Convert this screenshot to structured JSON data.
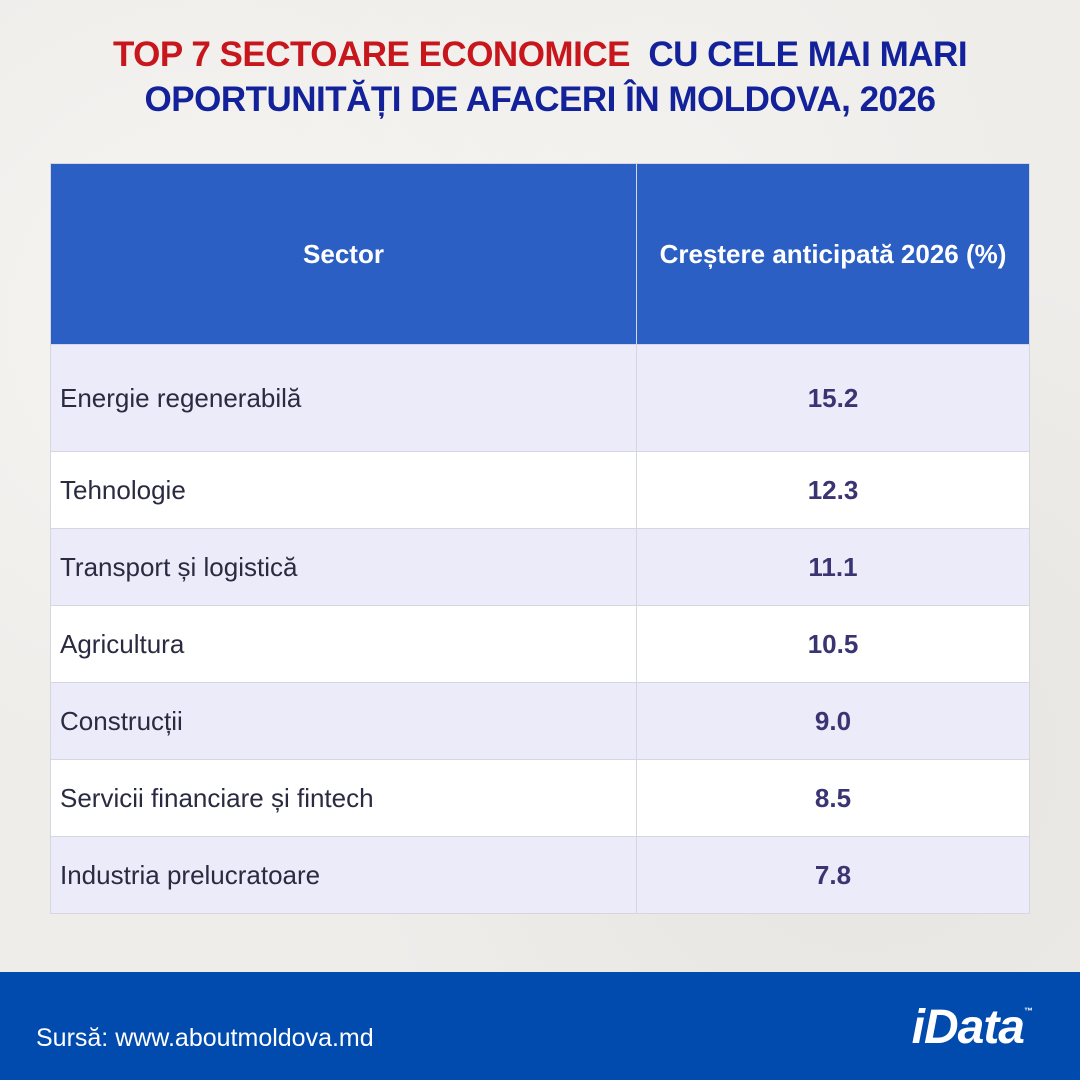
{
  "title": {
    "part_red": "TOP 7 SECTOARE ECONOMICE",
    "part_blue_1": "CU CELE MAI MARI",
    "line2": "OPORTUNITĂȚI DE AFACERI ÎN MOLDOVA, 2026"
  },
  "table": {
    "headers": [
      "Sector",
      "Creștere anticipată 2026 (%)"
    ],
    "rows": [
      {
        "sector": "Energie regenerabilă",
        "value": "15.2"
      },
      {
        "sector": "Tehnologie",
        "value": "12.3"
      },
      {
        "sector": "Transport și logistică",
        "value": "11.1"
      },
      {
        "sector": "Agricultura",
        "value": "10.5"
      },
      {
        "sector": "Construcții",
        "value": "9.0"
      },
      {
        "sector": "Servicii financiare și fintech",
        "value": "8.5"
      },
      {
        "sector": "Industria prelucratoare",
        "value": "7.8"
      }
    ]
  },
  "footer": {
    "source": "Sursă: www.aboutmoldova.md",
    "logo": "iData",
    "logo_tm": "™"
  },
  "colors": {
    "red": "#c8161d",
    "blue": "#13229a",
    "header": "#2c5fc4",
    "footer": "#014baf"
  }
}
